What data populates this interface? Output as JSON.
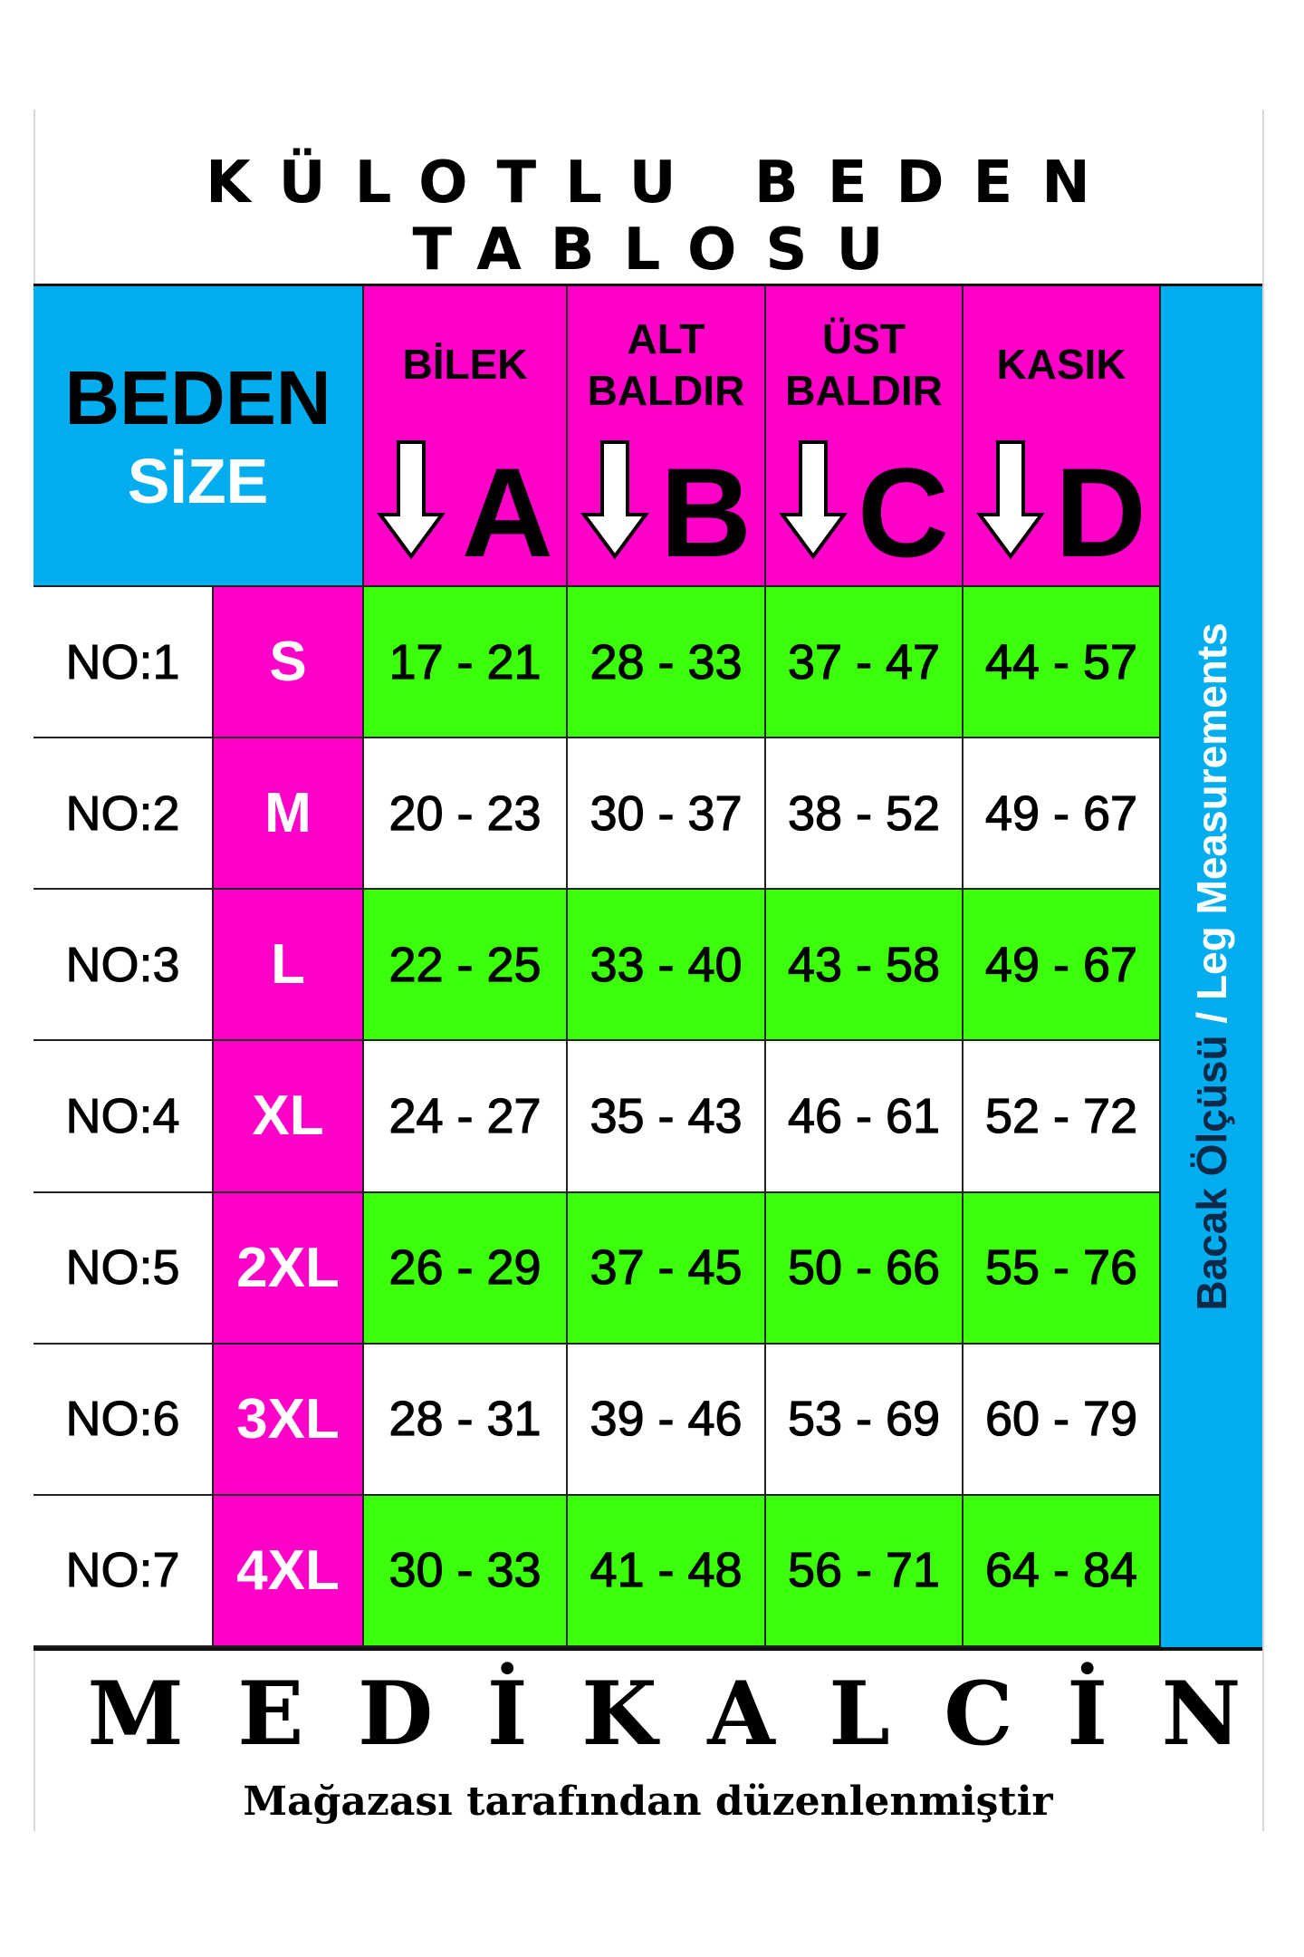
{
  "title": "KÜLOTLU BEDEN TABLOSU",
  "header": {
    "beden": "BEDEN",
    "size": "SİZE",
    "columns": [
      {
        "label": "BİLEK",
        "letter": "A"
      },
      {
        "label": "ALT BALDIR",
        "letter": "B"
      },
      {
        "label": "ÜST BALDIR",
        "letter": "C"
      },
      {
        "label": "KASIK",
        "letter": "D"
      }
    ]
  },
  "side_label": {
    "tr": "Bacak Ölçüsü",
    "en": "/ Leg Measurements"
  },
  "rows": [
    {
      "no": "NO:1",
      "size": "S",
      "values": [
        "17 - 21",
        "28 - 33",
        "37 - 47",
        "44 - 57"
      ]
    },
    {
      "no": "NO:2",
      "size": "M",
      "values": [
        "20 - 23",
        "30 - 37",
        "38 - 52",
        "49 - 67"
      ]
    },
    {
      "no": "NO:3",
      "size": "L",
      "values": [
        "22 - 25",
        "33 - 40",
        "43 - 58",
        "49 - 67"
      ]
    },
    {
      "no": "NO:4",
      "size": "XL",
      "values": [
        "24 - 27",
        "35 - 43",
        "46 - 61",
        "52 - 72"
      ]
    },
    {
      "no": "NO:5",
      "size": "2XL",
      "values": [
        "26 - 29",
        "37 - 45",
        "50 - 66",
        "55 - 76"
      ]
    },
    {
      "no": "NO:6",
      "size": "3XL",
      "values": [
        "28 - 31",
        "39 - 46",
        "53 - 69",
        "60 - 79"
      ]
    },
    {
      "no": "NO:7",
      "size": "4XL",
      "values": [
        "30 - 33",
        "41 - 48",
        "56 - 71",
        "64 - 84"
      ]
    }
  ],
  "footer": {
    "brand": "MEDİKALCİN",
    "subtitle": "Mağazası tarafından düzenlenmiştir"
  },
  "colors": {
    "cyan": "#00aeef",
    "magenta": "#ff00c8",
    "green": "#3cff0a",
    "white": "#ffffff"
  }
}
